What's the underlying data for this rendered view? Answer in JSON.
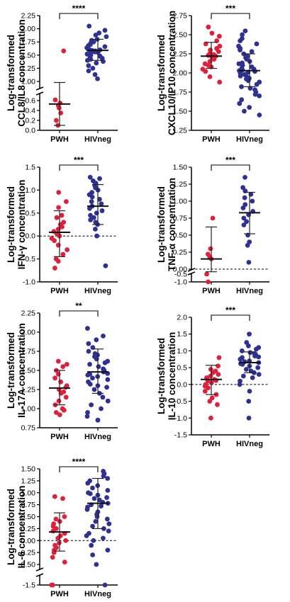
{
  "colors": {
    "pwh": "#e0203a",
    "hivneg": "#2e3192",
    "axis": "#000000"
  },
  "chart_data": [
    {
      "id": "ccl8",
      "type": "scatter",
      "ylabel": [
        "Log-transformed",
        "CCL8/IL8 concentration"
      ],
      "categories": [
        "PWH",
        "HIVneg"
      ],
      "ylim": [
        0,
        2.25
      ],
      "yticks": [
        "0.0",
        "0.2",
        "0.4",
        "0.6",
        "1.00",
        "1.25",
        "1.50",
        "1.75",
        "2.00",
        "2.25"
      ],
      "axis_break": true,
      "significance": "****",
      "series": [
        {
          "values": [
            1.58,
            0.65,
            0.55,
            0.5,
            0.45,
            0.35,
            0.2,
            0.1
          ],
          "mean": 0.53,
          "sd_low": 0.1,
          "sd_high": 0.98
        },
        {
          "values": [
            2.05,
            1.97,
            1.92,
            1.88,
            1.85,
            1.8,
            1.78,
            1.75,
            1.72,
            1.7,
            1.68,
            1.66,
            1.64,
            1.62,
            1.61,
            1.6,
            1.59,
            1.58,
            1.57,
            1.56,
            1.55,
            1.54,
            1.52,
            1.5,
            1.48,
            1.46,
            1.44,
            1.42,
            1.4,
            1.38,
            1.35,
            1.3,
            1.25,
            1.2,
            1.13,
            1.05
          ],
          "mean": 1.59,
          "sd_low": 1.4,
          "sd_high": 1.8
        }
      ]
    },
    {
      "id": "cxcl10",
      "type": "scatter",
      "ylabel": [
        "Log-transformed",
        "CXCL10/IP10 concentration"
      ],
      "categories": [
        "PWH",
        "HIVneg"
      ],
      "ylim": [
        1.25,
        2.75
      ],
      "yticks": [
        "1.25",
        "1.50",
        "1.75",
        "2.00",
        "2.25",
        "2.50",
        "2.75"
      ],
      "axis_break": false,
      "significance": "***",
      "series": [
        {
          "values": [
            2.6,
            2.52,
            2.48,
            2.42,
            2.38,
            2.35,
            2.32,
            2.3,
            2.28,
            2.26,
            2.24,
            2.23,
            2.22,
            2.2,
            2.18,
            2.15,
            2.12,
            2.1,
            2.08,
            2.05,
            2.02,
            1.95,
            1.88
          ],
          "mean": 2.22,
          "sd_low": 2.06,
          "sd_high": 2.4
        },
        {
          "values": [
            2.55,
            2.5,
            2.45,
            2.42,
            2.38,
            2.35,
            2.32,
            2.3,
            2.28,
            2.25,
            2.22,
            2.2,
            2.18,
            2.15,
            2.13,
            2.12,
            2.1,
            2.08,
            2.06,
            2.05,
            2.04,
            2.03,
            2.02,
            2.01,
            2.0,
            1.98,
            1.96,
            1.95,
            1.93,
            1.92,
            1.9,
            1.88,
            1.85,
            1.82,
            1.8,
            1.78,
            1.75,
            1.72,
            1.7,
            1.65,
            1.6,
            1.55,
            1.5,
            1.45
          ],
          "mean": 2.03,
          "sd_low": 1.82,
          "sd_high": 2.25
        }
      ]
    },
    {
      "id": "ifng",
      "type": "scatter",
      "ylabel": [
        "Log-transformed",
        "IFN-γ concentration"
      ],
      "categories": [
        "PWH",
        "HIVneg"
      ],
      "ylim": [
        -1.0,
        1.5
      ],
      "yticks": [
        "-1.0",
        "-0.5",
        "0.0",
        "0.5",
        "1.0",
        "1.5"
      ],
      "axis_break": false,
      "significance": "***",
      "series": [
        {
          "values": [
            0.95,
            0.75,
            0.62,
            0.45,
            0.4,
            0.3,
            0.25,
            0.2,
            0.15,
            0.1,
            0.05,
            0.0,
            -0.05,
            -0.1,
            -0.2,
            -0.3,
            -0.4,
            -0.5,
            -0.55,
            -0.7
          ],
          "mean": 0.08,
          "sd_low": -0.45,
          "sd_high": 0.55
        },
        {
          "values": [
            1.28,
            1.25,
            1.2,
            1.15,
            1.1,
            1.05,
            1.0,
            0.95,
            0.9,
            0.85,
            0.8,
            0.75,
            0.7,
            0.65,
            0.6,
            0.55,
            0.5,
            0.45,
            0.4,
            0.35,
            0.3,
            0.25,
            0.15,
            0.0,
            -0.65
          ],
          "mean": 0.65,
          "sd_low": 0.25,
          "sd_high": 1.12
        }
      ]
    },
    {
      "id": "tnfa",
      "type": "scatter",
      "ylabel": [
        "Log-transformed",
        "TNF-α concentration"
      ],
      "categories": [
        "PWH",
        "HIVneg"
      ],
      "ylim": [
        -1.0,
        1.5
      ],
      "yticks": [
        "-1.0",
        "-0.5",
        "0.00",
        "0.25",
        "0.50",
        "0.75",
        "1.00",
        "1.25",
        "1.50"
      ],
      "axis_break": true,
      "significance": "***",
      "series": [
        {
          "values": [
            0.75,
            0.3,
            0.22,
            0.18,
            0.15,
            -0.5,
            -1.0
          ],
          "mean": 0.15,
          "sd_low": -0.35,
          "sd_high": 0.62
        },
        {
          "values": [
            1.35,
            1.2,
            1.15,
            1.1,
            1.05,
            1.0,
            0.95,
            0.9,
            0.85,
            0.8,
            0.75,
            0.7,
            0.65,
            0.5,
            0.4,
            0.35,
            0.1
          ],
          "mean": 0.83,
          "sd_low": 0.52,
          "sd_high": 1.13
        }
      ]
    },
    {
      "id": "il17a",
      "type": "scatter",
      "ylabel": [
        "Log-transformed",
        "IL-17A concentration"
      ],
      "categories": [
        "PWH",
        "HIVneg"
      ],
      "ylim": [
        0.75,
        2.25
      ],
      "yticks": [
        "0.75",
        "1.00",
        "1.25",
        "1.50",
        "1.75",
        "2.00",
        "2.25"
      ],
      "axis_break": false,
      "significance": "**",
      "series": [
        {
          "values": [
            1.62,
            1.58,
            1.55,
            1.5,
            1.45,
            1.4,
            1.35,
            1.3,
            1.28,
            1.25,
            1.22,
            1.2,
            1.15,
            1.1,
            1.05,
            1.0,
            0.98,
            0.95,
            0.92
          ],
          "mean": 1.27,
          "sd_low": 1.05,
          "sd_high": 1.5
        },
        {
          "values": [
            2.05,
            1.95,
            1.9,
            1.85,
            1.8,
            1.75,
            1.72,
            1.7,
            1.68,
            1.65,
            1.62,
            1.6,
            1.58,
            1.55,
            1.52,
            1.5,
            1.48,
            1.46,
            1.45,
            1.44,
            1.42,
            1.4,
            1.38,
            1.35,
            1.32,
            1.3,
            1.28,
            1.25,
            1.2,
            1.15,
            1.1,
            1.05,
            1.0,
            0.95,
            0.9,
            0.85
          ],
          "mean": 1.48,
          "sd_low": 1.2,
          "sd_high": 1.78
        }
      ]
    },
    {
      "id": "il10",
      "type": "scatter",
      "ylabel": [
        "Log-transformed",
        "IL-10 concentration"
      ],
      "categories": [
        "PWH",
        "HIVneg"
      ],
      "ylim": [
        -1.5,
        2.0
      ],
      "yticks": [
        "-1.5",
        "-1.0",
        "-0.5",
        "0.0",
        "0.5",
        "1.0",
        "1.5",
        "2.0"
      ],
      "axis_break": false,
      "significance": "***",
      "series": [
        {
          "values": [
            0.8,
            0.55,
            0.45,
            0.4,
            0.35,
            0.3,
            0.25,
            0.2,
            0.15,
            0.12,
            0.1,
            0.05,
            0.0,
            -0.05,
            -0.1,
            -0.2,
            -0.3,
            -0.4,
            -0.5,
            -0.6,
            -1.0
          ],
          "mean": 0.15,
          "sd_low": -0.3,
          "sd_high": 0.57
        },
        {
          "values": [
            1.5,
            1.25,
            1.15,
            1.1,
            1.05,
            1.0,
            0.95,
            0.92,
            0.9,
            0.85,
            0.82,
            0.8,
            0.75,
            0.7,
            0.68,
            0.65,
            0.62,
            0.6,
            0.55,
            0.5,
            0.45,
            0.4,
            0.35,
            0.3,
            0.25,
            0.2,
            0.1,
            0.0,
            -0.2,
            -0.5,
            -1.0
          ],
          "mean": 0.65,
          "sd_low": 0.35,
          "sd_high": 0.97
        }
      ]
    },
    {
      "id": "il6",
      "type": "scatter",
      "ylabel": [
        "Log-transformed",
        "IL-6 concentration"
      ],
      "categories": [
        "PWH",
        "HIVneg"
      ],
      "ylim": [
        -1.5,
        1.5
      ],
      "yticks": [
        "-1.5",
        "-0.50",
        "-0.25",
        "0.00",
        "0.25",
        "0.50",
        "0.75",
        "1.00",
        "1.25",
        "1.50"
      ],
      "axis_break": true,
      "significance": "****",
      "series": [
        {
          "values": [
            0.92,
            0.88,
            0.5,
            0.45,
            0.4,
            0.35,
            0.3,
            0.25,
            0.2,
            0.15,
            0.1,
            0.05,
            0.0,
            -0.05,
            -0.1,
            -0.15,
            -0.2,
            -0.25,
            -0.35,
            -0.45,
            -0.6,
            -1.5
          ],
          "mean": 0.18,
          "sd_low": -0.22,
          "sd_high": 0.58
        },
        {
          "values": [
            1.45,
            1.4,
            1.35,
            1.3,
            1.25,
            1.2,
            1.15,
            1.1,
            1.05,
            1.0,
            0.98,
            0.95,
            0.9,
            0.88,
            0.85,
            0.8,
            0.78,
            0.75,
            0.72,
            0.7,
            0.65,
            0.6,
            0.55,
            0.5,
            0.45,
            0.4,
            0.35,
            0.3,
            0.25,
            0.2,
            0.15,
            0.1,
            0.05,
            0.0,
            -0.1,
            -0.2,
            -0.3,
            -0.5,
            -0.65
          ],
          "mean": 0.78,
          "sd_low": 0.25,
          "sd_high": 1.3
        }
      ]
    }
  ]
}
